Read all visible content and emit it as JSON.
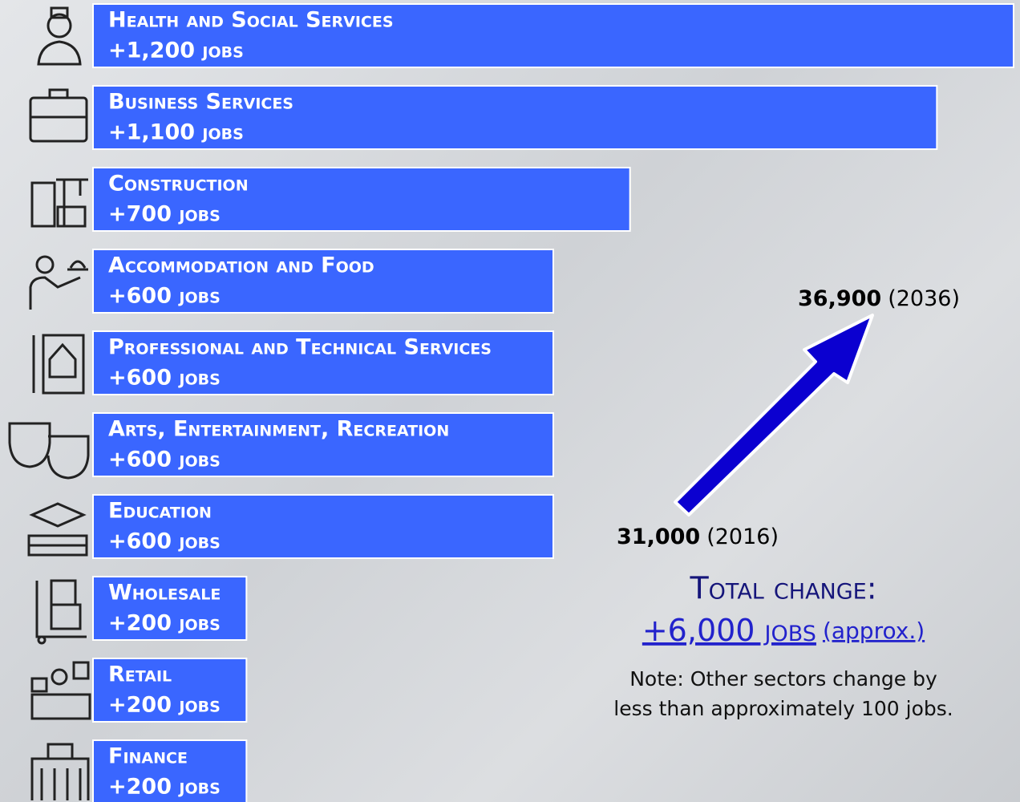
{
  "chart_data": {
    "type": "bar",
    "orientation": "horizontal",
    "color": "#3a66ff",
    "categories": [
      "Health and Social Services",
      "Business Services",
      "Construction",
      "Accommodation and Food",
      "Professional and Technical Services",
      "Arts, Entertainment, Recreation",
      "Education",
      "Wholesale",
      "Retail",
      "Finance"
    ],
    "values": [
      1200,
      1100,
      700,
      600,
      600,
      600,
      600,
      200,
      200,
      200
    ],
    "value_labels": [
      "+1,200 jobs",
      "+1,100 jobs",
      "+700 jobs",
      "+600 jobs",
      "+600 jobs",
      "+600 jobs",
      "+600 jobs",
      "+200 jobs",
      "+200 jobs",
      "+200 jobs"
    ],
    "annotations": {
      "end_value": "36,900",
      "end_year": "(2036)",
      "start_value": "31,000",
      "start_year": "(2016)",
      "total_title": "Total change:",
      "total_value": "+6,000 jobs",
      "total_note": "(approx.)",
      "note_lines": [
        "Note: Other sectors change by",
        "less than approximately 100 jobs."
      ]
    }
  }
}
